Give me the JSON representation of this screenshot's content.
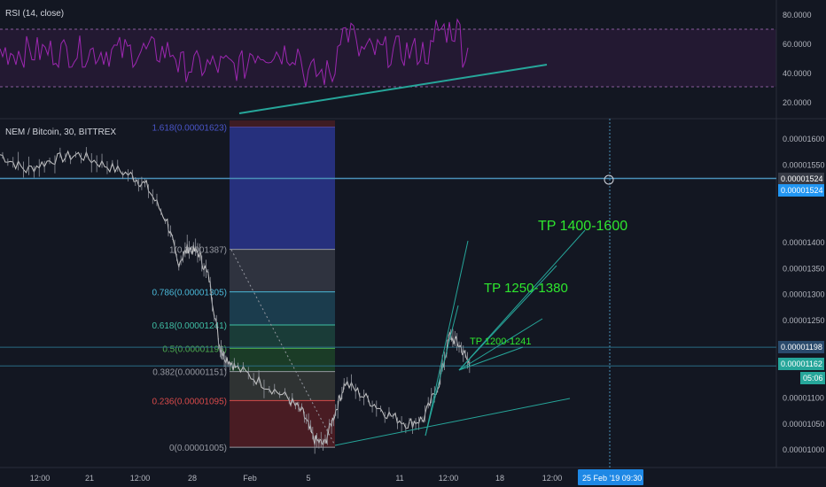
{
  "rsi_pane": {
    "title": "RSI (14, close)",
    "ticks": [
      "80.0000",
      "60.0000",
      "40.0000",
      "20.0000"
    ],
    "tick_values": [
      80,
      60,
      40,
      20
    ],
    "band_upper": 70,
    "band_lower": 30
  },
  "price_pane": {
    "title": "NEM / Bitcoin, 30, BITTREX",
    "ticks": [
      "0.00001600",
      "0.00001550",
      "0.00001400",
      "0.00001350",
      "0.00001300",
      "0.00001250",
      "0.00001100",
      "0.00001050",
      "0.00001000"
    ],
    "tick_values": [
      1600,
      1550,
      1400,
      1350,
      1300,
      1250,
      1100,
      1050,
      1000
    ],
    "badges": [
      {
        "text": "0.00001524",
        "kind": "crosshair"
      },
      {
        "text": "0.00001524",
        "kind": "line"
      },
      {
        "text": "0.00001198",
        "kind": "level"
      },
      {
        "text": "0.00001162",
        "kind": "last"
      },
      {
        "text": "05:06",
        "kind": "countdown"
      }
    ],
    "horizontal_lines": [
      1524,
      1198,
      1162
    ]
  },
  "fib": [
    {
      "label": "1.618(0.00001623)",
      "value": 1623,
      "color": "#4a55c8"
    },
    {
      "label": "1(0.00001387)",
      "value": 1387,
      "color": "#9598a1"
    },
    {
      "label": "0.786(0.00001305)",
      "value": 1305,
      "color": "#4ab8d8"
    },
    {
      "label": "0.618(0.00001241)",
      "value": 1241,
      "color": "#3fbfa5"
    },
    {
      "label": "0.5(0.00001196)",
      "value": 1196,
      "color": "#4caf50"
    },
    {
      "label": "0.382(0.00001151)",
      "value": 1151,
      "color": "#9598a1"
    },
    {
      "label": "0.236(0.00001095)",
      "value": 1095,
      "color": "#d84a4a"
    },
    {
      "label": "0(0.00001005)",
      "value": 1005,
      "color": "#9598a1"
    }
  ],
  "targets": [
    {
      "label": "TP 1400-1600",
      "size": "large"
    },
    {
      "label": "TP 1250-1380",
      "size": "medium"
    },
    {
      "label": "TP 1200-1241",
      "size": "small"
    }
  ],
  "time_axis": {
    "ticks": [
      "12:00",
      "21",
      "12:00",
      "28",
      "Feb",
      "5",
      "11",
      "12:00",
      "18",
      "12:00"
    ],
    "cursor_label": "25 Feb '19   09:30"
  },
  "colors": {
    "background": "#131722",
    "rsi_line": "#9c27b0",
    "trend": "#26a69a",
    "horizontal": "#4a90b8",
    "tp": "#2ee62e"
  },
  "chart_data": {
    "type": "candlestick",
    "title": "NEM / Bitcoin, 30, BITTREX",
    "y_unit": "BTC",
    "ylim": [
      9.75e-06,
      1.625e-05
    ],
    "price_path": [
      [
        0,
        1.57e-05
      ],
      [
        0.05,
        1.54e-05
      ],
      [
        0.1,
        1.56e-05
      ],
      [
        0.15,
        1.57e-05
      ],
      [
        0.2,
        1.55e-05
      ],
      [
        0.25,
        1.53e-05
      ],
      [
        0.28,
        1.51e-05
      ],
      [
        0.32,
        1.44e-05
      ],
      [
        0.34,
        1.36e-05
      ],
      [
        0.36,
        1.39e-05
      ],
      [
        0.38,
        1.38e-05
      ],
      [
        0.4,
        1.33e-05
      ],
      [
        0.42,
        1.2e-05
      ],
      [
        0.43,
        1.18e-05
      ],
      [
        0.45,
        1.16e-05
      ],
      [
        0.5,
        1.13e-05
      ],
      [
        0.55,
        1.1e-05
      ],
      [
        0.58,
        1.07e-05
      ],
      [
        0.6,
        1.02e-05
      ],
      [
        0.62,
        1.01e-05
      ],
      [
        0.64,
        1.07e-05
      ],
      [
        0.66,
        1.13e-05
      ],
      [
        0.7,
        1.1e-05
      ],
      [
        0.74,
        1.07e-05
      ],
      [
        0.78,
        1.05e-05
      ],
      [
        0.81,
        1.06e-05
      ],
      [
        0.84,
        1.13e-05
      ],
      [
        0.86,
        1.22e-05
      ],
      [
        0.88,
        1.2e-05
      ],
      [
        0.9,
        1.16e-05
      ]
    ],
    "rsi_range": [
      20,
      80
    ]
  }
}
